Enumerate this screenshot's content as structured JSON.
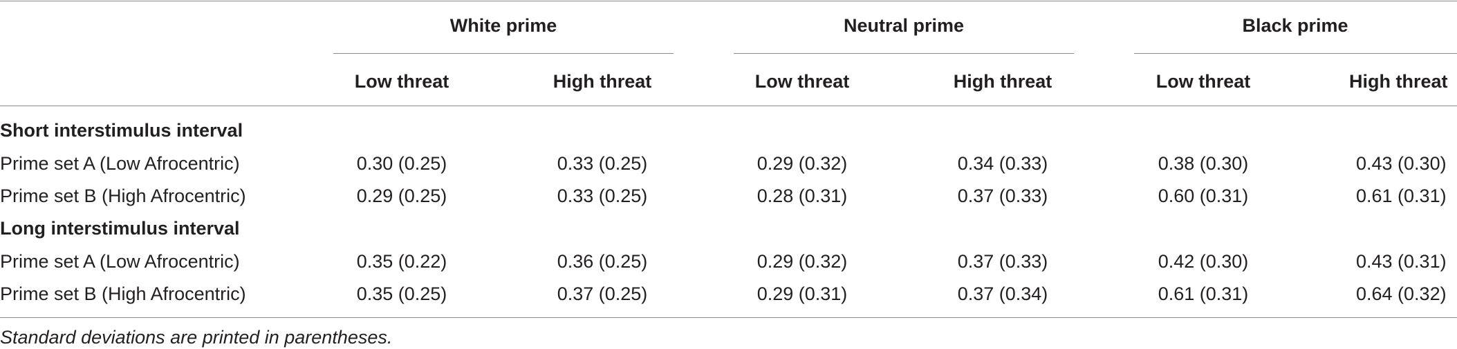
{
  "table": {
    "groups": [
      "White prime",
      "Neutral prime",
      "Black prime"
    ],
    "subheaders": [
      "Low threat",
      "High threat",
      "Low threat",
      "High threat",
      "Low threat",
      "High threat"
    ],
    "sections": [
      {
        "title": "Short interstimulus interval",
        "rows": [
          {
            "label": "Prime set A (Low Afrocentric)",
            "cells": [
              "0.30 (0.25)",
              "0.33 (0.25)",
              "0.29 (0.32)",
              "0.34 (0.33)",
              "0.38 (0.30)",
              "0.43 (0.30)"
            ]
          },
          {
            "label": "Prime set B (High Afrocentric)",
            "cells": [
              "0.29 (0.25)",
              "0.33 (0.25)",
              "0.28 (0.31)",
              "0.37 (0.33)",
              "0.60 (0.31)",
              "0.61 (0.31)"
            ]
          }
        ]
      },
      {
        "title": "Long interstimulus interval",
        "rows": [
          {
            "label": "Prime set A (Low Afrocentric)",
            "cells": [
              "0.35 (0.22)",
              "0.36 (0.25)",
              "0.29 (0.32)",
              "0.37 (0.33)",
              "0.42 (0.30)",
              "0.43 (0.31)"
            ]
          },
          {
            "label": "Prime set B (High Afrocentric)",
            "cells": [
              "0.35 (0.25)",
              "0.37 (0.25)",
              "0.29 (0.31)",
              "0.37 (0.34)",
              "0.61 (0.31)",
              "0.64 (0.32)"
            ]
          }
        ]
      }
    ],
    "footnote": "Standard deviations are printed in parentheses."
  }
}
